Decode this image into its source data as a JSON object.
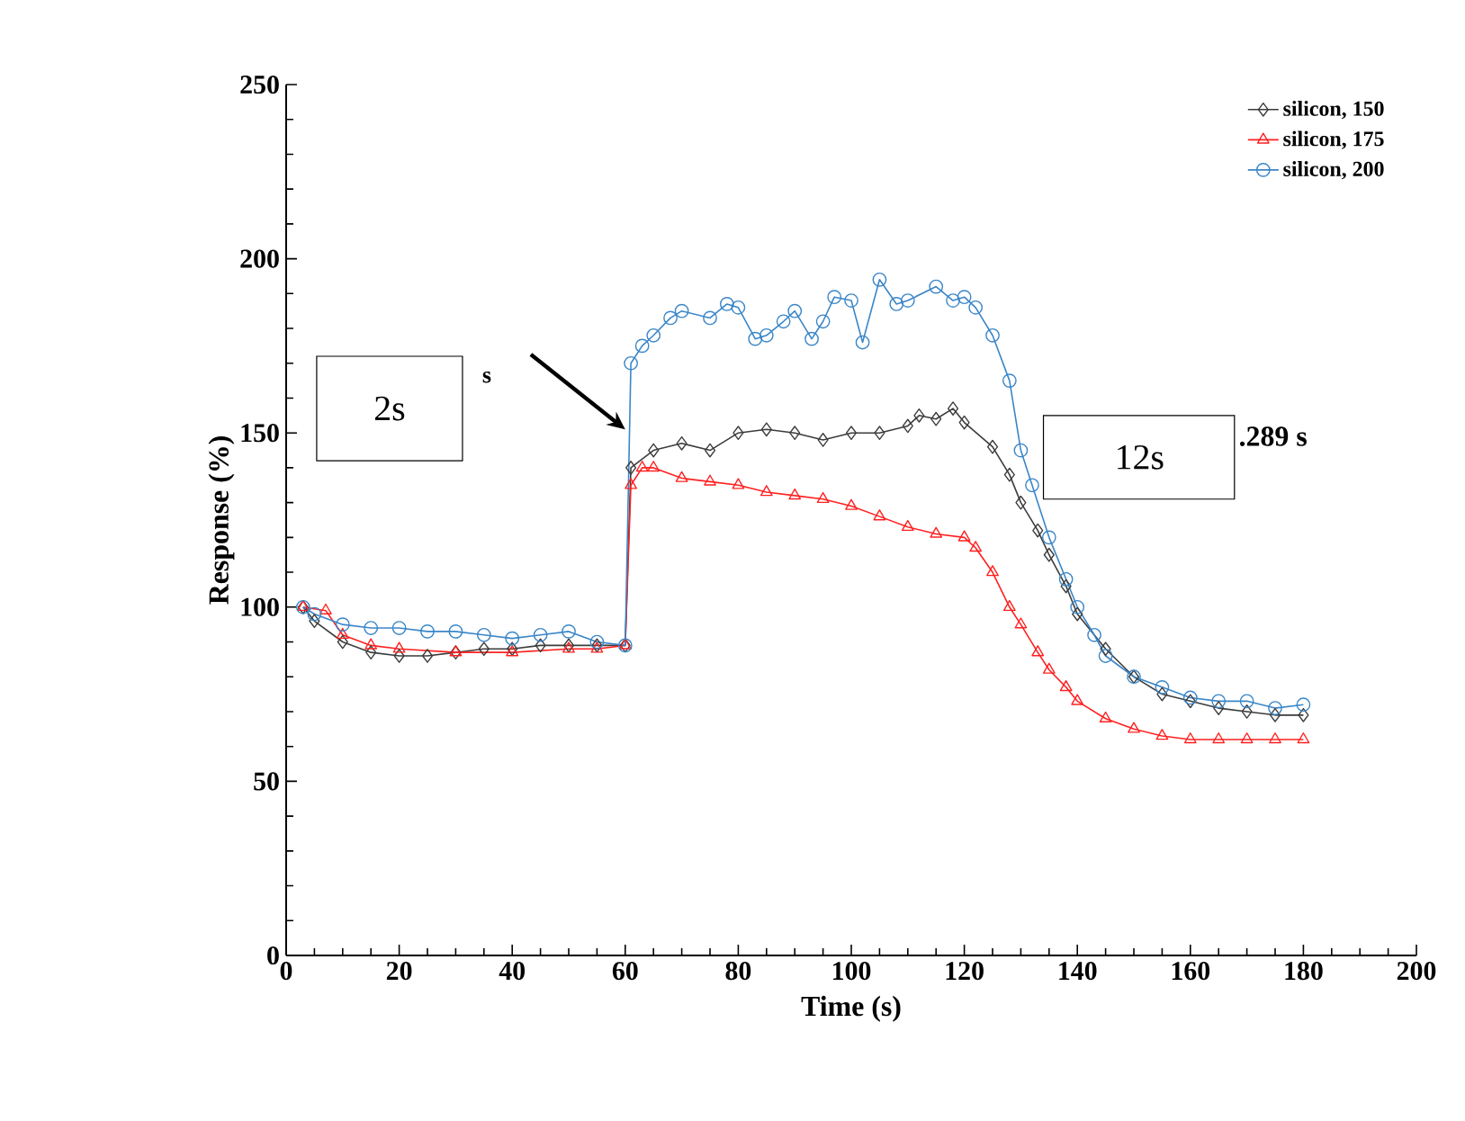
{
  "chart_data": {
    "type": "line",
    "xlabel": "Time (s)",
    "ylabel": "Response (%)",
    "xlim": [
      0,
      200
    ],
    "ylim": [
      0,
      250
    ],
    "xticks": [
      0,
      20,
      40,
      60,
      80,
      100,
      120,
      140,
      160,
      180,
      200
    ],
    "yticks": [
      0,
      50,
      100,
      150,
      200,
      250
    ],
    "legend": "top right",
    "annotations": [
      "2s",
      "s",
      "12s",
      ".289 s"
    ],
    "series": [
      {
        "name": "silicon, 150",
        "color": "#3c3c3c",
        "marker": "diamond",
        "x": [
          3,
          5,
          10,
          15,
          20,
          25,
          30,
          35,
          40,
          45,
          50,
          55,
          60,
          61,
          65,
          70,
          75,
          80,
          85,
          90,
          95,
          100,
          105,
          110,
          112,
          115,
          118,
          120,
          125,
          128,
          130,
          133,
          135,
          138,
          140,
          145,
          150,
          155,
          160,
          165,
          170,
          175,
          180
        ],
        "values": [
          100,
          96,
          90,
          87,
          86,
          86,
          87,
          88,
          88,
          89,
          89,
          89,
          89,
          140,
          145,
          147,
          145,
          150,
          151,
          150,
          148,
          150,
          150,
          152,
          155,
          154,
          157,
          153,
          146,
          138,
          130,
          122,
          115,
          106,
          98,
          88,
          80,
          75,
          73,
          71,
          70,
          69,
          69
        ]
      },
      {
        "name": "silicon, 175",
        "color": "#ff2020",
        "marker": "triangle",
        "x": [
          3,
          7,
          10,
          15,
          20,
          30,
          40,
          50,
          55,
          60,
          61,
          63,
          65,
          70,
          75,
          80,
          85,
          90,
          95,
          100,
          105,
          110,
          115,
          120,
          122,
          125,
          128,
          130,
          133,
          135,
          138,
          140,
          145,
          150,
          155,
          160,
          165,
          170,
          175,
          180
        ],
        "values": [
          100,
          99,
          92,
          89,
          88,
          87,
          87,
          88,
          88,
          89,
          135,
          140,
          140,
          137,
          136,
          135,
          133,
          132,
          131,
          129,
          126,
          123,
          121,
          120,
          117,
          110,
          100,
          95,
          87,
          82,
          77,
          73,
          68,
          65,
          63,
          62,
          62,
          62,
          62,
          62
        ]
      },
      {
        "name": "silicon, 200",
        "color": "#3a86c8",
        "marker": "circle",
        "x": [
          3,
          5,
          10,
          15,
          20,
          25,
          30,
          35,
          40,
          45,
          50,
          55,
          60,
          61,
          63,
          65,
          68,
          70,
          75,
          78,
          80,
          83,
          85,
          88,
          90,
          93,
          95,
          97,
          100,
          102,
          105,
          108,
          110,
          115,
          118,
          120,
          122,
          125,
          128,
          130,
          132,
          135,
          138,
          140,
          143,
          145,
          150,
          155,
          160,
          165,
          170,
          175,
          180
        ],
        "values": [
          100,
          98,
          95,
          94,
          94,
          93,
          93,
          92,
          91,
          92,
          93,
          90,
          89,
          170,
          175,
          178,
          183,
          185,
          183,
          187,
          186,
          177,
          178,
          182,
          185,
          177,
          182,
          189,
          188,
          176,
          194,
          187,
          188,
          192,
          188,
          189,
          186,
          178,
          165,
          145,
          135,
          120,
          108,
          100,
          92,
          86,
          80,
          77,
          74,
          73,
          73,
          71,
          72
        ]
      }
    ]
  }
}
